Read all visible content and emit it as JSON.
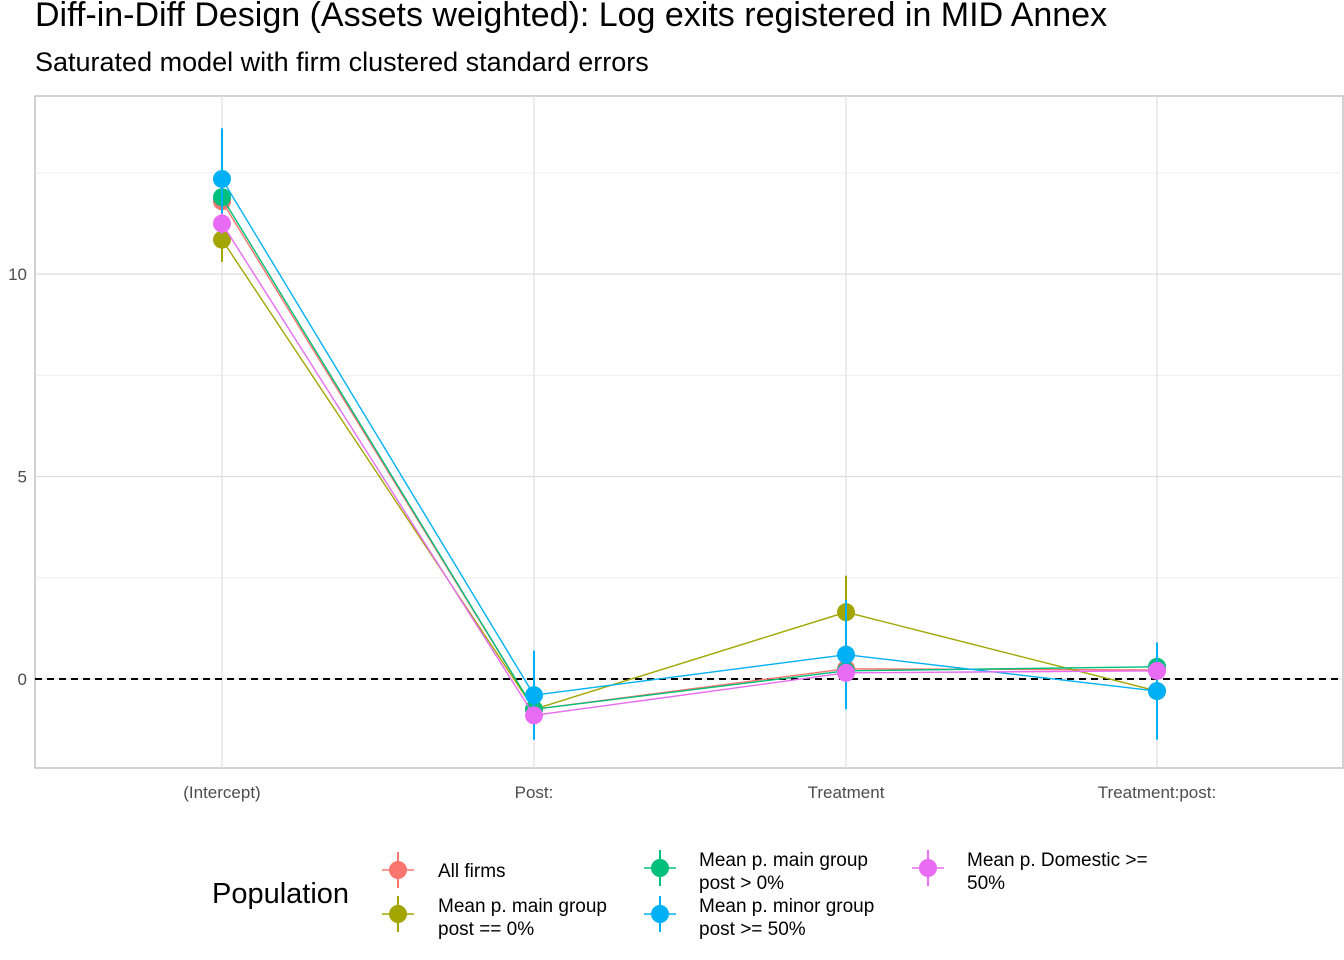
{
  "chart_data": {
    "type": "line",
    "title": "Diff-in-Diff Design (Assets weighted): Log exits registered in MID Annex",
    "subtitle": "Saturated model with firm clustered standard errors",
    "categories": [
      "(Intercept)",
      "Post:",
      "Treatment",
      "Treatment:post:"
    ],
    "y_ticks": [
      0,
      5,
      10
    ],
    "ylim": [
      -2.2,
      14.4
    ],
    "grid": true,
    "reference_line": 0,
    "legend": {
      "title": "Population",
      "placement": "bottom"
    },
    "series": [
      {
        "name": "All firms",
        "color": "#F8766D",
        "values": [
          11.8,
          -0.75,
          0.25,
          0.22
        ],
        "lower": [
          11.55,
          -0.95,
          0.05,
          0.02
        ],
        "upper": [
          12.05,
          -0.55,
          0.45,
          0.42
        ]
      },
      {
        "name": "Mean p. main group post == 0%",
        "color": "#A3A500",
        "values": [
          10.85,
          -0.75,
          1.65,
          -0.3
        ],
        "lower": [
          10.3,
          -0.95,
          0.75,
          -0.55
        ],
        "upper": [
          11.4,
          -0.55,
          2.55,
          -0.05
        ]
      },
      {
        "name": "Mean p. main group post > 0%",
        "color": "#00BF7D",
        "values": [
          11.9,
          -0.75,
          0.2,
          0.3
        ],
        "lower": [
          11.65,
          -0.95,
          0.0,
          0.1
        ],
        "upper": [
          12.15,
          -0.55,
          0.4,
          0.5
        ]
      },
      {
        "name": "Mean p. minor group post >= 50%",
        "color": "#00B0F6",
        "values": [
          12.35,
          -0.4,
          0.6,
          -0.3
        ],
        "lower": [
          11.1,
          -1.5,
          -0.75,
          -1.5
        ],
        "upper": [
          13.6,
          0.7,
          1.95,
          0.9
        ]
      },
      {
        "name": "Mean p. Domestic >= 50%",
        "color": "#E76BF3",
        "values": [
          11.25,
          -0.9,
          0.15,
          0.2
        ],
        "lower": [
          11.0,
          -1.1,
          -0.05,
          0.0
        ],
        "upper": [
          11.5,
          -0.7,
          0.35,
          0.4
        ]
      }
    ],
    "legend_labels": [
      {
        "series": 0,
        "lines": [
          "All firms"
        ]
      },
      {
        "series": 1,
        "lines": [
          "Mean p. main group",
          "post == 0%"
        ]
      },
      {
        "series": 2,
        "lines": [
          "Mean p. main group",
          "post > 0%"
        ]
      },
      {
        "series": 3,
        "lines": [
          "Mean p. minor group",
          "post >= 50%"
        ]
      },
      {
        "series": 4,
        "lines": [
          "Mean p. Domestic >=",
          "50%"
        ]
      }
    ]
  }
}
